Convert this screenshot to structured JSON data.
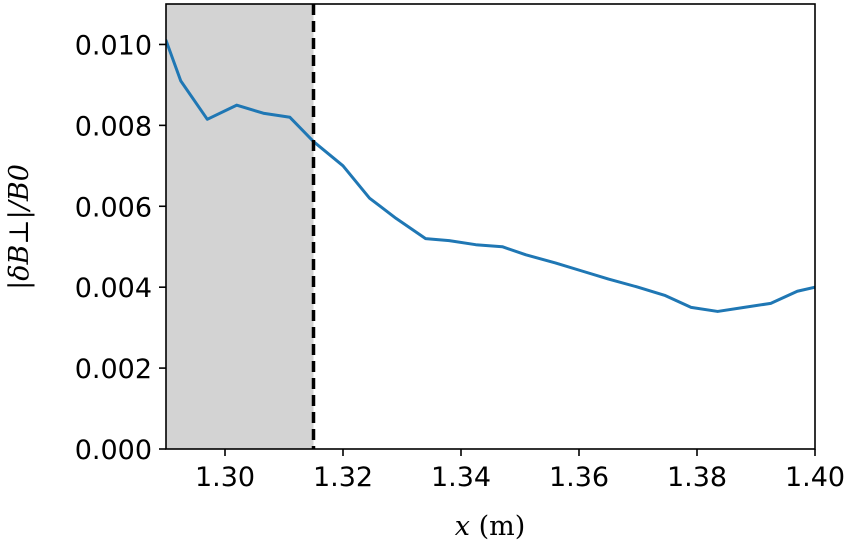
{
  "chart_data": {
    "type": "line",
    "xlabel_var": "x",
    "xlabel_unit": "(m)",
    "ylabel": "|δB⊥|/B0",
    "xlim": [
      1.29,
      1.4
    ],
    "ylim": [
      0.0,
      0.011
    ],
    "xticks": [
      1.3,
      1.32,
      1.34,
      1.36,
      1.38,
      1.4
    ],
    "xtick_labels": [
      "1.30",
      "1.32",
      "1.34",
      "1.36",
      "1.38",
      "1.40"
    ],
    "yticks": [
      0.0,
      0.002,
      0.004,
      0.006,
      0.008,
      0.01
    ],
    "ytick_labels": [
      "0.000",
      "0.002",
      "0.004",
      "0.006",
      "0.008",
      "0.010"
    ],
    "shaded_region": {
      "x_start": 1.29,
      "x_end": 1.315,
      "color": "#d3d3d3"
    },
    "vertical_line": {
      "x": 1.315,
      "style": "dashed",
      "color": "#000000"
    },
    "series": [
      {
        "color": "#1f77b4",
        "x": [
          1.29,
          1.2925,
          1.297,
          1.302,
          1.3065,
          1.311,
          1.315,
          1.32,
          1.3245,
          1.329,
          1.334,
          1.338,
          1.3425,
          1.347,
          1.351,
          1.356,
          1.3605,
          1.365,
          1.37,
          1.3745,
          1.379,
          1.3835,
          1.388,
          1.3925,
          1.397,
          1.4
        ],
        "y": [
          0.0101,
          0.0091,
          0.00815,
          0.0085,
          0.0083,
          0.0082,
          0.0076,
          0.007,
          0.0062,
          0.0057,
          0.0052,
          0.00515,
          0.00505,
          0.005,
          0.0048,
          0.0046,
          0.0044,
          0.0042,
          0.004,
          0.0038,
          0.0035,
          0.0034,
          0.0035,
          0.0036,
          0.0039,
          0.004
        ]
      }
    ]
  }
}
